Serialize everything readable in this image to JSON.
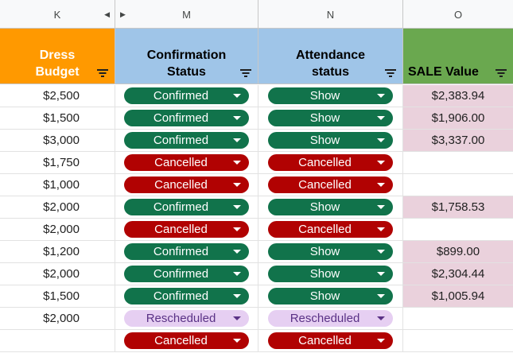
{
  "columns": [
    {
      "letter": "K"
    },
    {
      "letter": "M"
    },
    {
      "letter": "N"
    },
    {
      "letter": "O"
    }
  ],
  "headers": {
    "budget": [
      "Dress",
      "Budget"
    ],
    "confirmation": [
      "Confirmation",
      "Status"
    ],
    "attendance": [
      "Attendance",
      "status"
    ],
    "sale": [
      "SALE Value"
    ]
  },
  "colors": {
    "budget_header": "#ff9900",
    "confirmation_header": "#9fc5e8",
    "attendance_header": "#9fc5e8",
    "sale_header": "#6aa84f",
    "sale_fill": "#ead1dc",
    "chip_green": "#11734b",
    "chip_red": "#b10202",
    "chip_purple": "#e6cff2"
  },
  "rows": [
    {
      "budget": "$2,500",
      "confirmation": "Confirmed",
      "attendance": "Show",
      "sale": "$2,383.94"
    },
    {
      "budget": "$1,500",
      "confirmation": "Confirmed",
      "attendance": "Show",
      "sale": "$1,906.00"
    },
    {
      "budget": "$3,000",
      "confirmation": "Confirmed",
      "attendance": "Show",
      "sale": "$3,337.00"
    },
    {
      "budget": "$1,750",
      "confirmation": "Cancelled",
      "attendance": "Cancelled",
      "sale": ""
    },
    {
      "budget": "$1,000",
      "confirmation": "Cancelled",
      "attendance": "Cancelled",
      "sale": ""
    },
    {
      "budget": "$2,000",
      "confirmation": "Confirmed",
      "attendance": "Show",
      "sale": "$1,758.53"
    },
    {
      "budget": "$2,000",
      "confirmation": "Cancelled",
      "attendance": "Cancelled",
      "sale": ""
    },
    {
      "budget": "$1,200",
      "confirmation": "Confirmed",
      "attendance": "Show",
      "sale": "$899.00"
    },
    {
      "budget": "$2,000",
      "confirmation": "Confirmed",
      "attendance": "Show",
      "sale": "$2,304.44"
    },
    {
      "budget": "$1,500",
      "confirmation": "Confirmed",
      "attendance": "Show",
      "sale": "$1,005.94"
    },
    {
      "budget": "$2,000",
      "confirmation": "Rescheduled",
      "attendance": "Rescheduled",
      "sale": ""
    },
    {
      "budget": "",
      "confirmation": "Cancelled",
      "attendance": "Cancelled",
      "sale": ""
    }
  ]
}
